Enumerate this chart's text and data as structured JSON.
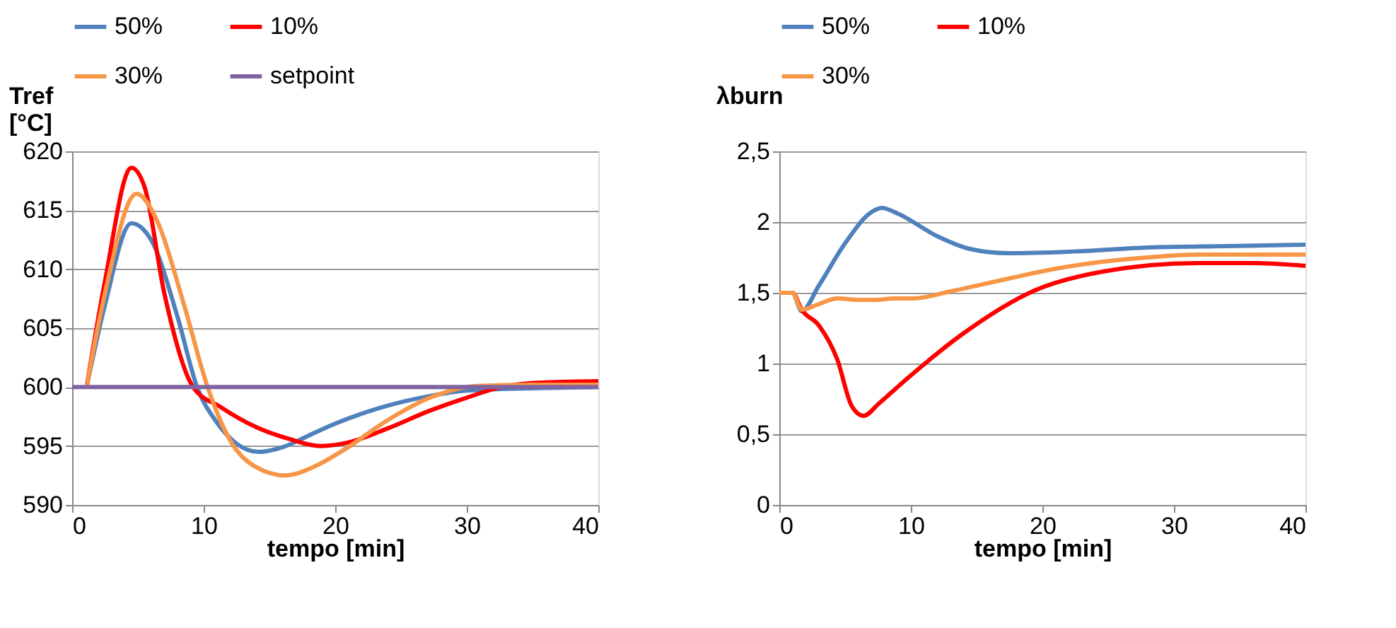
{
  "chart_data": [
    {
      "type": "line",
      "ylabel": "Tref [°C]",
      "xlabel": "tempo [min]",
      "xlim": [
        0,
        40
      ],
      "xticks": [
        0,
        10,
        20,
        30,
        40
      ],
      "ylim": [
        590,
        620
      ],
      "yticks": [
        590,
        595,
        600,
        605,
        610,
        615,
        620
      ],
      "grid": "y",
      "legend": "top",
      "series": [
        {
          "name": "50%",
          "color": "#4f81bd",
          "x": [
            1.1,
            2.5,
            4.5,
            6,
            8,
            9.5,
            11,
            12.5,
            14.2,
            16,
            18,
            20,
            23.6,
            27,
            30,
            35,
            40
          ],
          "values": [
            600,
            607,
            613.9,
            612.5,
            606,
            600,
            597,
            595.2,
            594.5,
            594.9,
            595.9,
            596.9,
            598.3,
            599.2,
            599.7,
            599.9,
            600
          ]
        },
        {
          "name": "10%",
          "color": "#ff0000",
          "x": [
            1.1,
            2.5,
            4.5,
            5.5,
            7,
            9.2,
            11.3,
            14,
            16.5,
            18.9,
            21,
            24,
            27.2,
            30,
            32.6,
            36,
            40
          ],
          "values": [
            600,
            609,
            618.6,
            617,
            608,
            600,
            598.3,
            596.6,
            595.6,
            595,
            595.3,
            596.5,
            598,
            599.1,
            600,
            600.4,
            600.5
          ]
        },
        {
          "name": "30%",
          "color": "#f79646",
          "x": [
            1.1,
            2.5,
            4.9,
            6.5,
            8.5,
            10.3,
            12,
            14,
            16.2,
            18.5,
            20.7,
            24,
            27.2,
            30.8,
            35,
            40
          ],
          "values": [
            600,
            608,
            616.4,
            614,
            607,
            600,
            595.5,
            593.2,
            592.5,
            593.3,
            594.7,
            597.2,
            599.1,
            600.1,
            600.2,
            600.2
          ]
        },
        {
          "name": "setpoint",
          "color": "#8064a2",
          "x": [
            0,
            40
          ],
          "values": [
            600,
            600
          ]
        }
      ]
    },
    {
      "type": "line",
      "ylabel": "λburn",
      "xlabel": "tempo [min]",
      "xlim": [
        0,
        40
      ],
      "xticks": [
        0,
        10,
        20,
        30,
        40
      ],
      "ylim": [
        0,
        2.5
      ],
      "yticks": [
        0,
        {
          "value": 0.5,
          "label": "0,5"
        },
        1,
        {
          "value": 1.5,
          "label": "1,5"
        },
        2,
        {
          "value": 2.5,
          "label": "2,5"
        }
      ],
      "grid": "y",
      "legend": "top",
      "series": [
        {
          "name": "50%",
          "color": "#4f81bd",
          "x": [
            0,
            1,
            1.7,
            3,
            5,
            7,
            7.8,
            9,
            12,
            14.5,
            17.4,
            22,
            28,
            34,
            40
          ],
          "values": [
            1.5,
            1.5,
            1.37,
            1.55,
            1.85,
            2.07,
            2.1,
            2.06,
            1.9,
            1.81,
            1.78,
            1.79,
            1.82,
            1.83,
            1.84
          ]
        },
        {
          "name": "10%",
          "color": "#ff0000",
          "x": [
            0,
            1,
            1.7,
            3,
            4.4,
            5.5,
            6.4,
            7.6,
            9.8,
            13.8,
            19.5,
            24.6,
            31.8,
            36,
            40
          ],
          "values": [
            1.5,
            1.5,
            1.38,
            1.27,
            1.03,
            0.7,
            0.63,
            0.72,
            0.9,
            1.2,
            1.52,
            1.65,
            1.71,
            1.71,
            1.69
          ]
        },
        {
          "name": "30%",
          "color": "#f79646",
          "x": [
            0,
            1,
            1.7,
            3,
            4.4,
            6,
            7.3,
            8.8,
            10.2,
            13,
            17.4,
            21,
            24.6,
            28,
            31.8,
            36,
            40
          ],
          "values": [
            1.5,
            1.5,
            1.38,
            1.42,
            1.46,
            1.45,
            1.45,
            1.46,
            1.46,
            1.51,
            1.6,
            1.67,
            1.72,
            1.75,
            1.77,
            1.77,
            1.77
          ]
        }
      ]
    }
  ]
}
